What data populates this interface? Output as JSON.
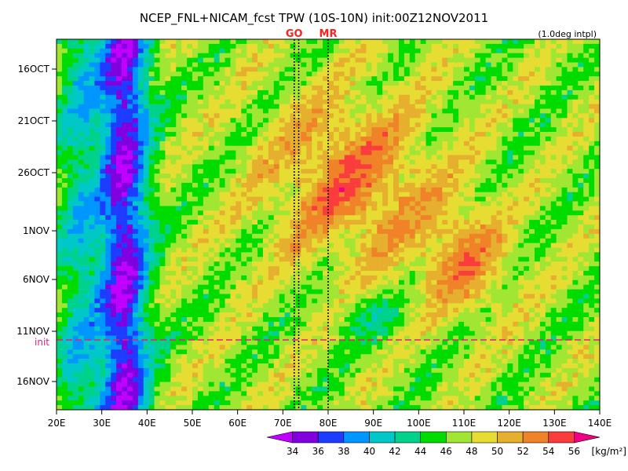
{
  "chart_data": {
    "type": "heatmap",
    "title": "NCEP_FNL+NICAM_fcst TPW (10S-10N) init:00Z12NOV2011",
    "subtitle": "(1.0deg intpl)",
    "x_ticks": [
      "20E",
      "30E",
      "40E",
      "50E",
      "60E",
      "70E",
      "80E",
      "90E",
      "100E",
      "110E",
      "120E",
      "130E",
      "140E"
    ],
    "xlim": [
      20,
      140
    ],
    "y_ticks": [
      "16OCT",
      "21OCT",
      "26OCT",
      "1NOV",
      "6NOV",
      "11NOV",
      "16NOV"
    ],
    "init_label": "init",
    "markers": [
      {
        "label": "GO",
        "lon": 72.5
      },
      {
        "label": "GO",
        "lon": 73.5
      },
      {
        "label": "MR",
        "lon": 80
      }
    ],
    "colorbar": {
      "unit": "[kg/m²]",
      "levels": [
        34,
        36,
        38,
        40,
        42,
        44,
        46,
        48,
        50,
        52,
        54,
        56
      ],
      "colors": [
        "#c000ff",
        "#8000e0",
        "#1e3cff",
        "#0096ff",
        "#00c8c8",
        "#00d28c",
        "#00dc00",
        "#a0e632",
        "#e6dc32",
        "#e6af2d",
        "#f08228",
        "#fa3c3c",
        "#f00082"
      ]
    },
    "grid": false
  }
}
